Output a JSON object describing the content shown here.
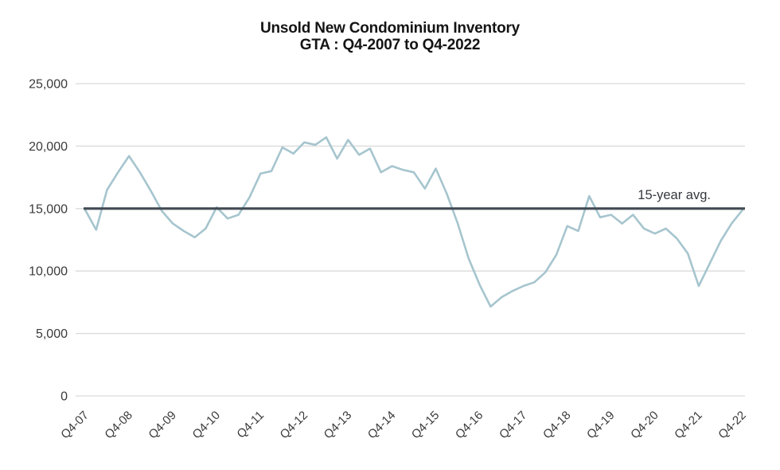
{
  "title": {
    "line1": "Unsold New Condominium Inventory",
    "line2": "GTA : Q4-2007 to Q4-2022"
  },
  "chart_data": {
    "type": "line",
    "title": "Unsold New Condominium Inventory",
    "subtitle": "GTA : Q4-2007 to Q4-2022",
    "xlabel": "",
    "ylabel": "",
    "ylim": [
      0,
      25000
    ],
    "grid": "horizontal",
    "legend_position": "none",
    "background_color": "#ffffff",
    "gridline_color": "#d9d9d9",
    "tick_text_color": "#3a3a3a",
    "x": [
      "Q4-07",
      "Q1-08",
      "Q2-08",
      "Q3-08",
      "Q4-08",
      "Q1-09",
      "Q2-09",
      "Q3-09",
      "Q4-09",
      "Q1-10",
      "Q2-10",
      "Q3-10",
      "Q4-10",
      "Q1-11",
      "Q2-11",
      "Q3-11",
      "Q4-11",
      "Q1-12",
      "Q2-12",
      "Q3-12",
      "Q4-12",
      "Q1-13",
      "Q2-13",
      "Q3-13",
      "Q4-13",
      "Q1-14",
      "Q2-14",
      "Q3-14",
      "Q4-14",
      "Q1-15",
      "Q2-15",
      "Q3-15",
      "Q4-15",
      "Q1-16",
      "Q2-16",
      "Q3-16",
      "Q4-16",
      "Q1-17",
      "Q2-17",
      "Q3-17",
      "Q4-17",
      "Q1-18",
      "Q2-18",
      "Q3-18",
      "Q4-18",
      "Q1-19",
      "Q2-19",
      "Q3-19",
      "Q4-19",
      "Q1-20",
      "Q2-20",
      "Q3-20",
      "Q4-20",
      "Q1-21",
      "Q2-21",
      "Q3-21",
      "Q4-21",
      "Q1-22",
      "Q2-22",
      "Q3-22",
      "Q4-22"
    ],
    "series": [
      {
        "name": "Unsold new condominium inventory",
        "color": "#a6c5ce",
        "values": [
          14900,
          13300,
          16500,
          17900,
          19200,
          17900,
          16400,
          14800,
          13800,
          13200,
          12700,
          13400,
          15100,
          14200,
          14500,
          15900,
          17800,
          18000,
          19900,
          19400,
          20300,
          20100,
          20700,
          19000,
          20500,
          19300,
          19800,
          17900,
          18400,
          18100,
          17900,
          16600,
          18200,
          16200,
          13800,
          11000,
          8900,
          7150,
          7900,
          8400,
          8800,
          9100,
          9900,
          11300,
          13600,
          13200,
          16000,
          14300,
          14500,
          13800,
          14500,
          13400,
          13000,
          13400,
          12600,
          11400,
          8800,
          10600,
          12400,
          13800,
          14900
        ]
      }
    ],
    "avg_line": {
      "value": 15000,
      "label": "15-year avg.",
      "color": "#414a53",
      "label_color": "#35393f"
    },
    "y_ticks": [
      0,
      5000,
      10000,
      15000,
      20000,
      25000
    ],
    "y_tick_labels": [
      "0",
      "5,000",
      "10,000",
      "15,000",
      "20,000",
      "25,000"
    ],
    "x_tick_labels": [
      "Q4-07",
      "Q4-08",
      "Q4-09",
      "Q4-10",
      "Q4-11",
      "Q4-12",
      "Q4-13",
      "Q4-14",
      "Q4-15",
      "Q4-16",
      "Q4-17",
      "Q4-18",
      "Q4-19",
      "Q4-20",
      "Q4-21",
      "Q4-22"
    ],
    "x_tick_every": 4,
    "x_tick_rotation": -45
  }
}
